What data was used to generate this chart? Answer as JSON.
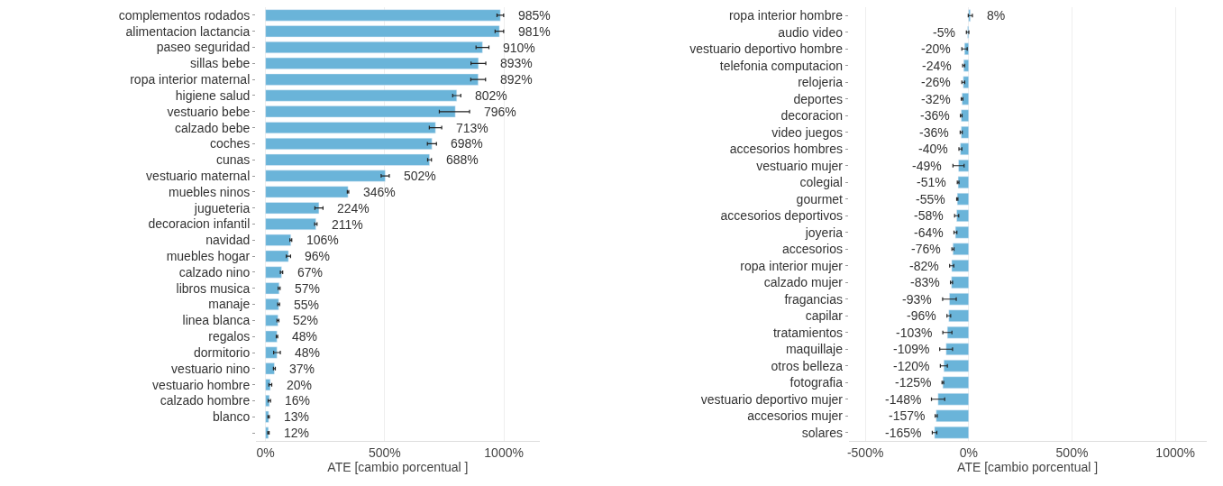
{
  "chart_data": [
    {
      "type": "bar",
      "orientation": "horizontal",
      "xlabel": "ATE [cambio porcentual ]",
      "color": "#6ab4d9",
      "grid": "x",
      "legend": false,
      "categories": [
        "complementos rodados",
        "alimentacion lactancia",
        "paseo seguridad",
        "sillas bebe",
        "ropa interior maternal",
        "higiene salud",
        "vestuario bebe",
        "calzado bebe",
        "coches",
        "cunas",
        "vestuario maternal",
        "muebles ninos",
        "jugueteria",
        "decoracion infantil",
        "navidad",
        "muebles hogar",
        "calzado nino",
        "libros musica",
        "manaje",
        "linea blanca",
        "regalos",
        "dormitorio",
        "vestuario nino",
        "vestuario hombre",
        "calzado hombre",
        "blanco",
        null
      ],
      "values": [
        985,
        981,
        910,
        893,
        892,
        802,
        796,
        713,
        698,
        688,
        502,
        346,
        224,
        211,
        106,
        96,
        67,
        57,
        55,
        52,
        48,
        48,
        37,
        20,
        16,
        13,
        12
      ],
      "errors": [
        14,
        18,
        27,
        31,
        31,
        17,
        [
          729,
          856
        ],
        26,
        19,
        8,
        17,
        3,
        17,
        5,
        4,
        9,
        5,
        4,
        4,
        4,
        3,
        14,
        4,
        6,
        5,
        3,
        3
      ],
      "xlim": [
        -40,
        1150
      ],
      "value_labels": [
        "985%",
        "981%",
        "910%",
        "893%",
        "892%",
        "802%",
        "796%",
        "713%",
        "698%",
        "688%",
        "502%",
        "346%",
        "224%",
        "211%",
        "106%",
        "96%",
        "67%",
        "57%",
        "55%",
        "52%",
        "48%",
        "48%",
        "37%",
        "20%",
        "16%",
        "13%",
        "12%"
      ],
      "xticks": [
        {
          "value": 0,
          "label": "0%"
        },
        {
          "value": 500,
          "label": "500%"
        },
        {
          "value": 1000,
          "label": "1000%"
        }
      ]
    },
    {
      "type": "bar",
      "orientation": "horizontal",
      "xlabel": "ATE [cambio porcentual ]",
      "color": "#6ab4d9",
      "grid": "x",
      "legend": false,
      "categories": [
        "ropa interior hombre",
        "audio video",
        "vestuario deportivo hombre",
        "telefonia computacion",
        "relojeria",
        "deportes",
        "decoracion",
        "video juegos",
        "accesorios hombres",
        "vestuario mujer",
        "colegial",
        "gourmet",
        "accesorios deportivos",
        "joyeria",
        "accesorios",
        "ropa interior mujer",
        "calzado mujer",
        "fragancias",
        "capilar",
        "tratamientos",
        "maquillaje",
        "otros belleza",
        "fotografia",
        "vestuario deportivo mujer",
        "accesorios mujer",
        "solares"
      ],
      "values": [
        8,
        -5,
        -20,
        -24,
        -26,
        -32,
        -36,
        -36,
        -40,
        -49,
        -51,
        -55,
        -58,
        -64,
        -76,
        -82,
        -83,
        -93,
        -96,
        -103,
        -109,
        -120,
        -125,
        -148,
        -157,
        -165
      ],
      "errors": [
        10,
        6,
        13,
        5,
        7,
        4,
        4,
        5,
        7,
        27,
        4,
        3,
        10,
        7,
        5,
        10,
        5,
        33,
        9,
        22,
        31,
        17,
        4,
        32,
        5,
        11
      ],
      "xlim": [
        -580,
        1150
      ],
      "value_labels": [
        "8%",
        "-5%",
        "-20%",
        "-24%",
        "-26%",
        "-32%",
        "-36%",
        "-36%",
        "-40%",
        "-49%",
        "-51%",
        "-55%",
        "-58%",
        "-64%",
        "-76%",
        "-82%",
        "-83%",
        "-93%",
        "-96%",
        "-103%",
        "-109%",
        "-120%",
        "-125%",
        "-148%",
        "-157%",
        "-165%"
      ],
      "xticks": [
        {
          "value": -500,
          "label": "-500%"
        },
        {
          "value": 0,
          "label": "0%"
        },
        {
          "value": 500,
          "label": "500%"
        },
        {
          "value": 1000,
          "label": "1000%"
        }
      ]
    }
  ]
}
